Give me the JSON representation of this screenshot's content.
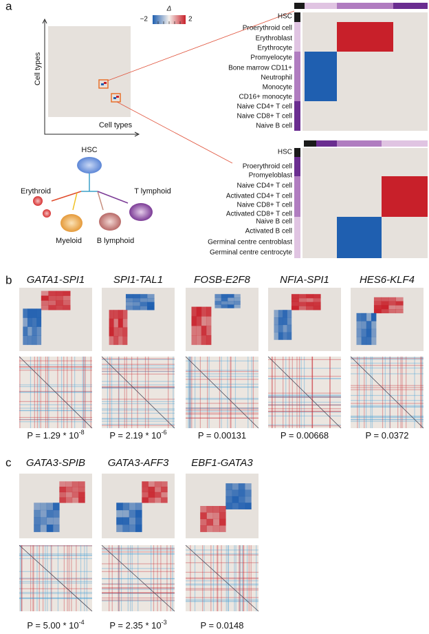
{
  "panel_labels": [
    "a",
    "b",
    "c"
  ],
  "schematic": {
    "y_axis_label": "Cell types",
    "x_axis_label": "Cell types",
    "colorbar_title": "Δ",
    "colorbar_ticks": [
      "−2",
      "2"
    ]
  },
  "heatmap_top": {
    "rows": [
      "HSC",
      "Proerythroid cell",
      "Erythroblast",
      "Erythrocyte",
      "Promyelocyte",
      "Bone marrow CD11+",
      "Neutrophil",
      "Monocyte",
      "CD16+ monocyte",
      "Naive CD4+ T cell",
      "Naive CD8+ T cell",
      "Naive B cell"
    ]
  },
  "heatmap_bottom": {
    "rows": [
      "HSC",
      "Proerythroid cell",
      "Promyeloblast",
      "Naive CD4+ T cell",
      "Activated CD4+ T cell",
      "Naive CD8+ T cell",
      "Activated CD8+ T cell",
      "Naive B cell",
      "Activated B cell",
      "Germinal centre centroblast",
      "Germinal centre centrocyte"
    ]
  },
  "tree": {
    "root": "HSC",
    "branches": [
      "Erythroid",
      "Myeloid",
      "B lymphoid",
      "T lymphoid"
    ]
  },
  "panel_b": [
    {
      "title": "GATA1-SPI1",
      "p": "P = 1.29 * 10",
      "exp": "-8"
    },
    {
      "title": "SPI1-TAL1",
      "p": "P = 2.19 * 10",
      "exp": "-6"
    },
    {
      "title": "FOSB-E2F8",
      "p": "P = 0.00131"
    },
    {
      "title": "NFIA-SPI1",
      "p": "P = 0.00668"
    },
    {
      "title": "HES6-KLF4",
      "p": "P = 0.0372"
    }
  ],
  "panel_c": [
    {
      "title": "GATA3-SPIB",
      "p": "P = 5.00 * 10",
      "exp": "-4"
    },
    {
      "title": "GATA3-AFF3",
      "p": "P = 2.35 * 10",
      "exp": "-3"
    },
    {
      "title": "EBF1-GATA3",
      "p": "P = 0.0148"
    }
  ]
}
